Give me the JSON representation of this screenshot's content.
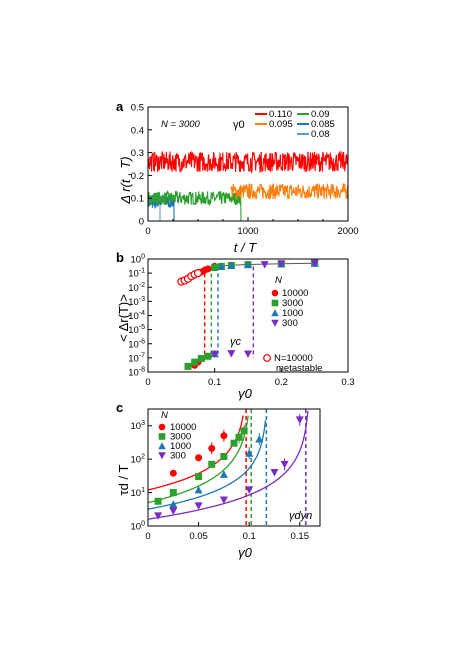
{
  "chart_data": [
    {
      "panel": "a",
      "type": "line",
      "annotation_n": "N = 3000",
      "legend_title": "γ0",
      "xlabel": "t / T",
      "ylabel": "Δ r(t , T)",
      "xlim": [
        0,
        2000
      ],
      "ylim": [
        0,
        0.5
      ],
      "xticks": [
        0,
        1000,
        2000
      ],
      "yticks": [
        0,
        0.1,
        0.2,
        0.3,
        0.4,
        0.5
      ],
      "series": [
        {
          "name": "0.110",
          "color": "#ff0000",
          "mean": 0.26,
          "noise": 0.045,
          "t_start": 0,
          "t_end": 2000,
          "drop_to": null
        },
        {
          "name": "0.095",
          "color": "#ff7f0e",
          "mean": 0.13,
          "noise": 0.035,
          "t_start": 830,
          "t_end": 2000,
          "drop_to": null
        },
        {
          "name": "0.09",
          "color": "#2ca02c",
          "mean": 0.1,
          "noise": 0.03,
          "t_start": 0,
          "t_end": 930,
          "drop_to": 0,
          "flat_until": 1500
        },
        {
          "name": "0.085",
          "color": "#1f77b4",
          "mean": 0.085,
          "noise": 0.03,
          "t_start": 0,
          "t_end": 260,
          "drop_to": 0,
          "flat_until": 520
        },
        {
          "name": "0.08",
          "color": "#5b9bd5",
          "mean": 0.09,
          "noise": 0.04,
          "t_start": 0,
          "t_end": 120,
          "drop_to": 0,
          "flat_until": 300
        }
      ]
    },
    {
      "panel": "b",
      "type": "scatter",
      "scale_y": "log",
      "xlabel": "γ0",
      "ylabel": "< Δr(T)>",
      "xlim": [
        0,
        0.3
      ],
      "ylim_exp": [
        -8,
        0
      ],
      "xticks": [
        0,
        0.1,
        0.2,
        0.3
      ],
      "ytick_labels": [
        "10-8",
        "10-7",
        "10-6",
        "10-5",
        "10-4",
        "10-3",
        "10-2",
        "10-1",
        "100"
      ],
      "legend_title": "N",
      "annotation_gamma": "γc",
      "series": [
        {
          "name": "10000",
          "color": "#ff0000",
          "marker": "circle",
          "x": [
            0.07,
            0.075,
            0.08,
            0.085,
            0.09,
            0.1
          ],
          "y": [
            3e-08,
            5e-08,
            0.12,
            0.16,
            0.2,
            0.3
          ]
        },
        {
          "name": "3000",
          "color": "#2ca02c",
          "marker": "square",
          "x": [
            0.06,
            0.07,
            0.08,
            0.09,
            0.1,
            0.11,
            0.125,
            0.15,
            0.2,
            0.25
          ],
          "y": [
            2.5e-08,
            5e-08,
            9e-08,
            1.3e-07,
            0.25,
            0.3,
            0.35,
            0.4,
            0.45,
            0.5
          ]
        },
        {
          "name": "1000",
          "color": "#1f77b4",
          "marker": "triangle-up",
          "x": [
            0.1,
            0.11,
            0.125,
            0.15,
            0.2,
            0.25
          ],
          "y": [
            2e-07,
            0.3,
            0.35,
            0.4,
            0.45,
            0.5
          ]
        },
        {
          "name": "300",
          "color": "#7b2cbf",
          "marker": "triangle-down",
          "x": [
            0.1,
            0.125,
            0.15,
            0.175,
            0.2,
            0.25
          ],
          "y": [
            1.8e-07,
            2e-07,
            1.9e-07,
            0.4,
            0.45,
            0.5
          ]
        },
        {
          "name": "N=10000 metastable",
          "color": "#ff0000",
          "marker": "open-circle",
          "x": [
            0.05,
            0.055,
            0.06,
            0.065,
            0.07,
            0.075
          ],
          "y": [
            0.025,
            0.03,
            0.04,
            0.06,
            0.08,
            0.1
          ]
        }
      ],
      "fit_x": [
        0.085,
        0.1,
        0.125,
        0.15,
        0.2,
        0.25
      ],
      "fit_y": [
        0.12,
        0.28,
        0.36,
        0.41,
        0.46,
        0.5
      ],
      "vlines": [
        {
          "x": 0.085,
          "color": "#ff0000"
        },
        {
          "x": 0.095,
          "color": "#2ca02c"
        },
        {
          "x": 0.105,
          "color": "#1f77b4"
        },
        {
          "x": 0.158,
          "color": "#7b2cbf"
        }
      ],
      "vline_low": 1e-07,
      "vline_high": 0.3
    },
    {
      "panel": "c",
      "type": "scatter",
      "scale_y": "log",
      "xlabel": "γ0",
      "ylabel": "τd / T",
      "xlim": [
        0,
        0.17
      ],
      "ylim_exp": [
        0,
        3.5
      ],
      "xticks": [
        0,
        0.05,
        0.1,
        0.15
      ],
      "ytick_labels": [
        "100",
        "101",
        "102",
        "103"
      ],
      "legend_title": "N",
      "annotation_gamma": "γdyn",
      "series": [
        {
          "name": "10000",
          "color": "#ff0000",
          "marker": "circle",
          "gdyn": 0.098,
          "A": 12,
          "nu": 1.6,
          "x": [
            0.025,
            0.05,
            0.063,
            0.075
          ],
          "y": [
            38,
            110,
            210,
            500
          ]
        },
        {
          "name": "3000",
          "color": "#2ca02c",
          "marker": "square",
          "gdyn": 0.102,
          "A": 5,
          "nu": 1.7,
          "x": [
            0.01,
            0.025,
            0.05,
            0.063,
            0.075,
            0.085,
            0.09,
            0.095
          ],
          "y": [
            5.5,
            10,
            30,
            70,
            120,
            300,
            450,
            700
          ]
        },
        {
          "name": "1000",
          "color": "#1f77b4",
          "marker": "triangle-up",
          "gdyn": 0.118,
          "A": 3.2,
          "nu": 1.5,
          "x": [
            0.025,
            0.05,
            0.075,
            0.1,
            0.11
          ],
          "y": [
            4.5,
            12,
            35,
            150,
            400
          ]
        },
        {
          "name": "300",
          "color": "#7b2cbf",
          "marker": "triangle-down",
          "gdyn": 0.16,
          "A": 1.6,
          "nu": 1.7,
          "x": [
            0.01,
            0.025,
            0.05,
            0.075,
            0.1,
            0.125,
            0.135,
            0.15
          ],
          "y": [
            2,
            2.8,
            4,
            6,
            12,
            40,
            70,
            1500
          ]
        }
      ],
      "vlines": [
        {
          "x": 0.097,
          "color": "#ff0000"
        },
        {
          "x": 0.102,
          "color": "#2ca02c"
        },
        {
          "x": 0.117,
          "color": "#1f77b4"
        },
        {
          "x": 0.156,
          "color": "#7b2cbf"
        }
      ]
    }
  ]
}
